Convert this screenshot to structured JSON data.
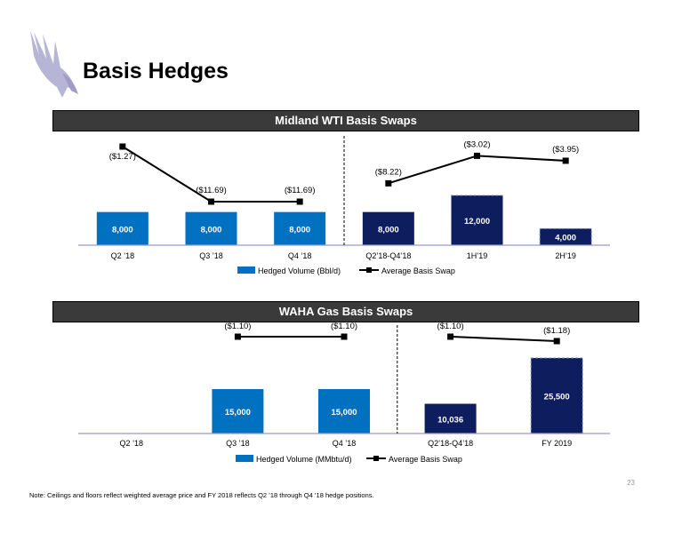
{
  "page": {
    "title": "Basis Hedges",
    "page_number": "23",
    "footnote": "Note: Ceilings and floors reflect weighted average price and FY 2018 reflects Q2 ’18 through Q4 ’18 hedge positions."
  },
  "colors": {
    "bar_quarter": "#0070C0",
    "bar_period": "#0D1D5E",
    "line": "#000000",
    "axis": "#9999CC",
    "header_bg": "#3A3A3A"
  },
  "logo": {
    "icon": "eagle-logo-icon"
  },
  "chart_data": [
    {
      "type": "bar",
      "title": "Midland WTI Basis Swaps",
      "categories": [
        "Q2 ’18",
        "Q3 ’18",
        "Q4 ’18",
        "Q2’18-Q4’18",
        "1H’19",
        "2H’19"
      ],
      "series": [
        {
          "name": "Hedged Volume (Bbl/d)",
          "type": "bar",
          "values": [
            8000,
            8000,
            8000,
            8000,
            12000,
            4000
          ],
          "labels": [
            "8,000",
            "8,000",
            "8,000",
            "8,000",
            "12,000",
            "4,000"
          ],
          "styles": [
            "quarter",
            "quarter",
            "quarter",
            "period",
            "period-dashed",
            "period-dashed"
          ]
        },
        {
          "name": "Average Basis Swap",
          "type": "line",
          "values": [
            -1.27,
            -11.69,
            -11.69,
            -8.22,
            -3.02,
            -3.95
          ],
          "labels": [
            "($1.27)",
            "($11.69)",
            "($11.69)",
            "($8.22)",
            "($3.02)",
            "($3.95)"
          ],
          "segments": [
            [
              0,
              2
            ],
            [
              3,
              5
            ]
          ]
        }
      ],
      "divider_after": 2,
      "legend": "bottom"
    },
    {
      "type": "bar",
      "title": "WAHA Gas Basis Swaps",
      "categories": [
        "Q2 ’18",
        "Q3 ’18",
        "Q4 ’18",
        "Q2’18-Q4’18",
        "FY 2019"
      ],
      "series": [
        {
          "name": "Hedged Volume (MMbtu/d)",
          "type": "bar",
          "values": [
            null,
            15000,
            15000,
            10036,
            25500
          ],
          "labels": [
            "",
            "15,000",
            "15,000",
            "10,036",
            "25,500"
          ],
          "styles": [
            "quarter",
            "quarter",
            "quarter",
            "period",
            "period-dashed"
          ]
        },
        {
          "name": "Average Basis Swap",
          "type": "line",
          "values": [
            null,
            -1.1,
            -1.1,
            -1.1,
            -1.18
          ],
          "labels": [
            "",
            "($1.10)",
            "($1.10)",
            "($1.10)",
            "($1.18)"
          ],
          "segments": [
            [
              1,
              2
            ],
            [
              3,
              4
            ]
          ]
        }
      ],
      "divider_after": 2,
      "legend": "bottom"
    }
  ]
}
